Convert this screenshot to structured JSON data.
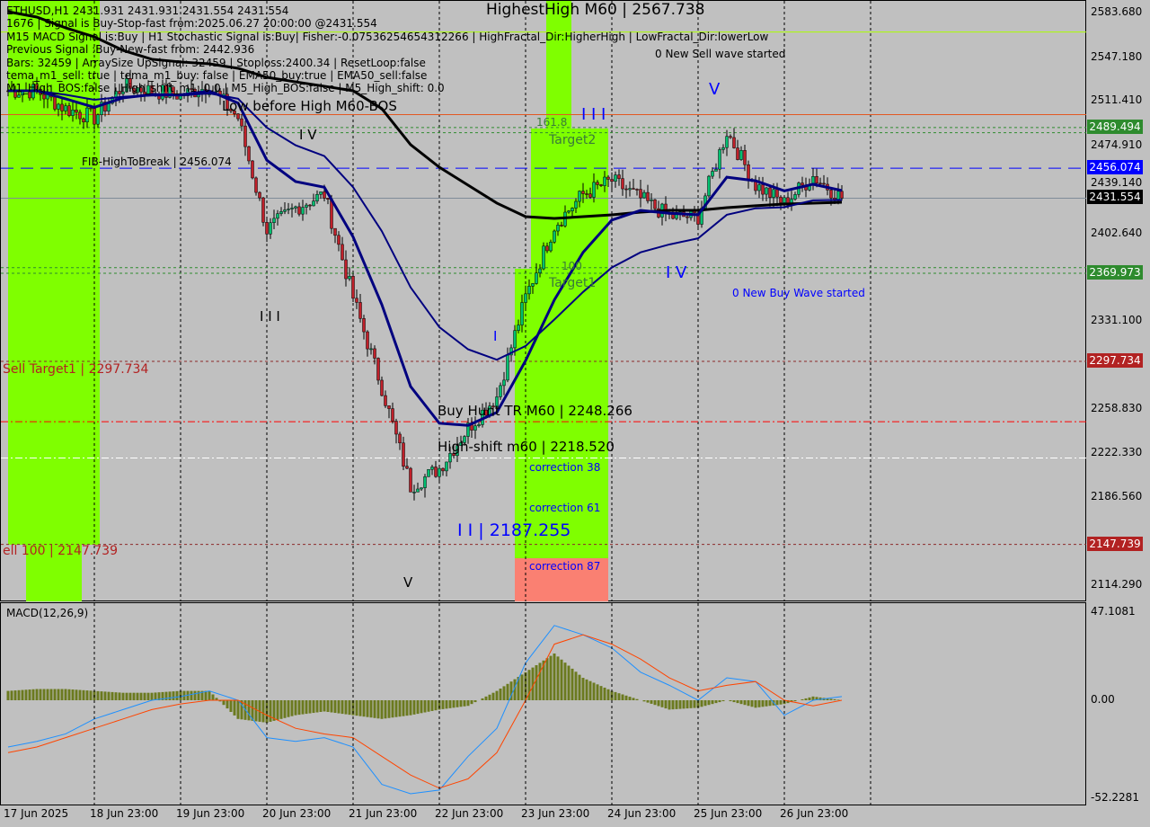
{
  "header": {
    "line1": "ETHUSD,H1  2431.931 2431.931 2431.554 2431.554",
    "line2": "1676 | Signal is Buy-Stop-fast from:2025.06.27 20:00:00 @2431.554",
    "line3": "M15 MACD Signal is:Buy | H1 Stochastic Signal is:Buy| Fisher:-0.07536254654312266 | HighFractal_Dir:HigherHigh | LowFractal_Dir:lowerLow",
    "line4": "Previous Signal :Buy-New-fast from: 2442.936",
    "line5": "Bars: 32459 | ArraySize UpSignal: 32459 | Stoploss:2400.34 | ResetLoop:false",
    "line6": "tema_m1_sell: true | tema_m1_buy: false | EMA50_buy:true | EMA50_sell:false",
    "line7": "M1_High_BOS:false | High_shift_m1: 0.0 | M5_High_BOS:false | M5_High_shift: 0.0"
  },
  "annotations": {
    "highest_high": "HighestHigh   M60 | 2567.738",
    "new_sell_wave": "0 New Sell wave started",
    "low_before_high": "Low before High   M60-BOS",
    "fib_high_to_break": "FIB-HighToBreak | 2456.074",
    "wave_iv_left": "I V",
    "wave_iii_left": "I I I",
    "sell_target1": "Sell Target1 | 2297.734",
    "sell_100": "ell 100 | 2147.739",
    "wave_v_low": "V",
    "buy_hunt": "Buy Hunt TR M60 | 2248.266",
    "high_shift": "High-shift m60 | 2218.520",
    "correction_38": "correction 38",
    "correction_61": "correction 61",
    "correction_87": "correction 87",
    "wave_ii": "I I | 2187.255",
    "wave_i": "I",
    "wave_iii": "I I I",
    "fib_161": "161.8",
    "target2": "Target2",
    "fib_100": "100",
    "target1": "Target1",
    "wave_iv": "I V",
    "wave_v": "V",
    "new_buy_wave": "0 New Buy Wave started"
  },
  "price_tags": [
    {
      "value": "2489.494",
      "price": 2489.494,
      "color": "#2e8b2e"
    },
    {
      "value": "2456.074",
      "price": 2456.074,
      "color": "#0000ff"
    },
    {
      "value": "2431.554",
      "price": 2431.554,
      "color": "#000000"
    },
    {
      "value": "2369.973",
      "price": 2369.973,
      "color": "#2e8b2e"
    },
    {
      "value": "2297.734",
      "price": 2297.734,
      "color": "#b22222"
    },
    {
      "value": "2147.739",
      "price": 2147.739,
      "color": "#b22222"
    }
  ],
  "levels": [
    {
      "price": 2489.494,
      "color": "#2e8b2e",
      "style": "dash"
    },
    {
      "price": 2485.2,
      "color": "#2e8b2e",
      "style": "dash"
    },
    {
      "price": 2456.074,
      "color": "#0000ff",
      "style": "longdash"
    },
    {
      "price": 2431.554,
      "color": "#7f8c99",
      "style": "solid"
    },
    {
      "price": 2374.6,
      "color": "#2e8b2e",
      "style": "dash"
    },
    {
      "price": 2369.973,
      "color": "#2e8b2e",
      "style": "dash"
    },
    {
      "price": 2297.734,
      "color": "#8b2a2a",
      "style": "dash"
    },
    {
      "price": 2248.266,
      "color": "#ff0000",
      "style": "dashdot"
    },
    {
      "price": 2218.52,
      "color": "#ffffff",
      "style": "dashdot"
    },
    {
      "price": 2147.739,
      "color": "#8b2a2a",
      "style": "dash"
    },
    {
      "price": 2567.738,
      "color": "#aaff00",
      "style": "solid"
    },
    {
      "price": 2500.0,
      "color": "#e25822",
      "style": "solid"
    }
  ],
  "chart_data": {
    "type": "candlestick",
    "symbol": "ETHUSD",
    "timeframe": "H1",
    "ylim": [
      2114.29,
      2583.68
    ],
    "y_ticks": [
      "2583.680",
      "2547.180",
      "2511.410",
      "2474.910",
      "2439.140",
      "2402.640",
      "2331.100",
      "2258.830",
      "2222.330",
      "2186.560",
      "2114.290"
    ],
    "y_tick_values": [
      2583.68,
      2547.18,
      2511.41,
      2474.91,
      2439.14,
      2402.64,
      2331.1,
      2258.83,
      2222.33,
      2186.56,
      2114.29
    ],
    "x_ticks": [
      "17 Jun 2025",
      "18 Jun 23:00",
      "19 Jun 23:00",
      "20 Jun 23:00",
      "21 Jun 23:00",
      "22 Jun 23:00",
      "23 Jun 23:00",
      "24 Jun 23:00",
      "25 Jun 23:00",
      "26 Jun 23:00"
    ],
    "times": [
      "2025-06-17 23:00",
      "2025-06-18 07:00",
      "2025-06-18 15:00",
      "2025-06-18 23:00",
      "2025-06-19 07:00",
      "2025-06-19 15:00",
      "2025-06-19 23:00",
      "2025-06-20 07:00",
      "2025-06-20 15:00",
      "2025-06-20 23:00",
      "2025-06-21 07:00",
      "2025-06-21 15:00",
      "2025-06-21 23:00",
      "2025-06-22 07:00",
      "2025-06-22 15:00",
      "2025-06-22 23:00",
      "2025-06-23 07:00",
      "2025-06-23 15:00",
      "2025-06-23 23:00",
      "2025-06-24 07:00",
      "2025-06-24 15:00",
      "2025-06-24 23:00",
      "2025-06-25 07:00",
      "2025-06-25 15:00",
      "2025-06-25 23:00",
      "2025-06-26 07:00",
      "2025-06-26 15:00",
      "2025-06-26 23:00",
      "2025-06-27 07:00",
      "2025-06-27 15:00"
    ],
    "close": [
      2519.6,
      2519.6,
      2504.9,
      2497.5,
      2523.3,
      2519.6,
      2515.9,
      2523.3,
      2497.5,
      2405.4,
      2423.8,
      2434.8,
      2350.1,
      2276.4,
      2195.3,
      2210.1,
      2243.2,
      2269.0,
      2350.1,
      2409.0,
      2434.8,
      2445.9,
      2431.2,
      2416.4,
      2416.4,
      2486.4,
      2442.2,
      2427.4,
      2449.6,
      2431.554
    ],
    "slow_ma": [
      2584.4,
      2580.0,
      2571.2,
      2563.8,
      2552.7,
      2545.4,
      2543.2,
      2541.7,
      2538.0,
      2530.6,
      2526.9,
      2523.3,
      2519.6,
      2504.9,
      2475.4,
      2456.9,
      2442.2,
      2427.5,
      2416.4,
      2414.9,
      2416.4,
      2417.9,
      2420.1,
      2421.6,
      2421.6,
      2423.8,
      2425.3,
      2426.7,
      2427.5,
      2428.2
    ],
    "macd": {
      "title": "MACD(12,26,9)",
      "ylim": [
        -52.2281,
        47.1081
      ],
      "y_ticks": [
        "47.1081",
        "0.00",
        "-52.2281"
      ],
      "histogram": [
        5,
        6,
        6,
        5,
        4,
        4,
        5,
        5,
        -10,
        -12,
        -8,
        -6,
        -8,
        -10,
        -8,
        -5,
        -3,
        5,
        15,
        25,
        12,
        5,
        0,
        -5,
        -4,
        0,
        -4,
        -2,
        2,
        0
      ],
      "main": [
        -25,
        -22,
        -18,
        -10,
        -5,
        0,
        2,
        5,
        0,
        -20,
        -22,
        -20,
        -25,
        -45,
        -50,
        -48,
        -30,
        -15,
        20,
        40,
        35,
        28,
        15,
        8,
        0,
        12,
        10,
        -8,
        0,
        2
      ],
      "signal": [
        -28,
        -25,
        -20,
        -15,
        -10,
        -5,
        -2,
        0,
        0,
        -8,
        -15,
        -18,
        -20,
        -30,
        -40,
        -47,
        -42,
        -28,
        0,
        30,
        35,
        30,
        22,
        12,
        5,
        8,
        10,
        0,
        -3,
        0
      ],
      "colors": {
        "histogram": "#6b7a1f",
        "main": "#1e90ff",
        "signal": "#ff4500"
      }
    },
    "colors": {
      "bull": "#00c070",
      "bear": "#c0202a",
      "slow_ma": "#000000",
      "fast_ma": "#00007f",
      "background": "#c0c0c0",
      "zone_green": "#7fff00",
      "zone_red": "#fa8072"
    }
  }
}
